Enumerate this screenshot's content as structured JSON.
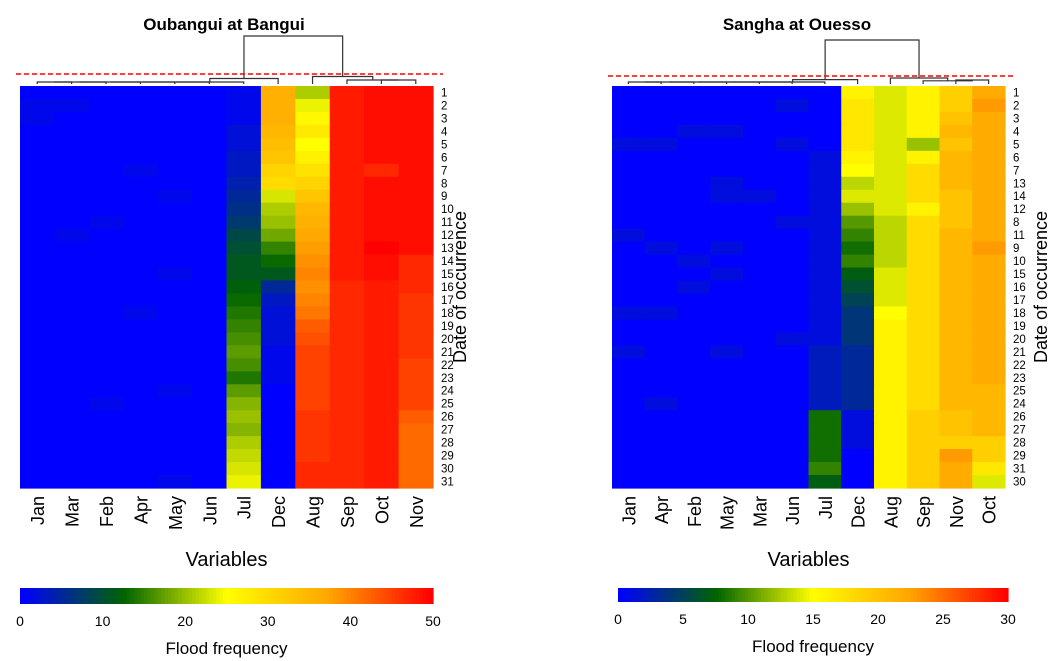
{
  "chart_data": [
    {
      "type": "heatmap",
      "title": "Oubangui at Bangui",
      "xlabel": "Variables",
      "ylabel": "Date of occurrence",
      "colorbar_label": "Flood frequency",
      "colorbar_ticks": [
        "0",
        "10",
        "20",
        "30",
        "40",
        "50"
      ],
      "value_range": [
        0,
        50
      ],
      "colorscale": [
        "#0000ff",
        "#006400",
        "#ffff00",
        "#ffa500",
        "#ff0000"
      ],
      "dendrogram_cut": "red-dashed",
      "columns": [
        "Jan",
        "Mar",
        "Feb",
        "Apr",
        "May",
        "Jun",
        "Jul",
        "Dec",
        "Aug",
        "Sep",
        "Oct",
        "Nov"
      ],
      "rows": [
        "1",
        "2",
        "3",
        "4",
        "5",
        "6",
        "7",
        "8",
        "9",
        "10",
        "11",
        "12",
        "13",
        "14",
        "15",
        "16",
        "17",
        "18",
        "19",
        "20",
        "21",
        "22",
        "23",
        "24",
        "25",
        "26",
        "27",
        "28",
        "29",
        "30",
        "31"
      ],
      "values": [
        [
          0,
          0,
          0,
          0,
          0,
          0,
          1,
          36,
          21,
          48,
          49,
          49
        ],
        [
          1,
          1,
          0,
          0,
          0,
          0,
          1,
          36,
          24,
          48,
          49,
          49
        ],
        [
          1,
          0,
          0,
          0,
          0,
          0,
          1,
          36,
          26,
          48,
          49,
          49
        ],
        [
          0,
          0,
          0,
          0,
          0,
          0,
          2,
          35,
          28,
          48,
          49,
          49
        ],
        [
          0,
          0,
          0,
          0,
          0,
          0,
          2,
          34,
          25,
          48,
          49,
          49
        ],
        [
          0,
          0,
          0,
          0,
          0,
          0,
          3,
          33,
          27,
          48,
          49,
          49
        ],
        [
          0,
          0,
          0,
          1,
          0,
          0,
          3,
          31,
          29,
          48,
          47,
          49
        ],
        [
          0,
          0,
          0,
          0,
          0,
          0,
          4,
          30,
          31,
          48,
          49,
          49
        ],
        [
          0,
          0,
          0,
          0,
          1,
          0,
          5,
          23,
          33,
          48,
          49,
          49
        ],
        [
          0,
          0,
          0,
          0,
          0,
          0,
          6,
          21,
          35,
          48,
          49,
          49
        ],
        [
          0,
          0,
          1,
          0,
          0,
          0,
          7,
          20,
          36,
          48,
          49,
          49
        ],
        [
          0,
          1,
          0,
          0,
          0,
          0,
          9,
          18,
          37,
          48,
          49,
          49
        ],
        [
          0,
          0,
          0,
          0,
          0,
          0,
          10,
          15,
          38,
          48,
          50,
          49
        ],
        [
          0,
          0,
          0,
          0,
          0,
          0,
          11,
          13,
          39,
          48,
          49,
          47
        ],
        [
          0,
          0,
          0,
          0,
          1,
          0,
          11,
          11,
          40,
          48,
          49,
          47
        ],
        [
          0,
          0,
          0,
          0,
          0,
          0,
          12,
          5,
          39,
          47,
          48,
          47
        ],
        [
          0,
          0,
          0,
          0,
          0,
          0,
          13,
          3,
          40,
          47,
          48,
          46
        ],
        [
          0,
          0,
          0,
          1,
          0,
          0,
          14,
          2,
          41,
          47,
          48,
          46
        ],
        [
          0,
          0,
          0,
          0,
          0,
          0,
          15,
          2,
          43,
          47,
          48,
          46
        ],
        [
          0,
          0,
          0,
          0,
          0,
          0,
          16,
          2,
          44,
          47,
          48,
          46
        ],
        [
          0,
          0,
          0,
          0,
          0,
          0,
          17,
          1,
          45,
          47,
          48,
          46
        ],
        [
          0,
          0,
          0,
          0,
          0,
          0,
          16,
          1,
          45,
          47,
          48,
          45
        ],
        [
          0,
          0,
          0,
          0,
          0,
          0,
          14,
          1,
          45,
          47,
          48,
          45
        ],
        [
          0,
          0,
          0,
          0,
          1,
          0,
          17,
          0,
          45,
          47,
          48,
          45
        ],
        [
          0,
          0,
          1,
          0,
          0,
          0,
          19,
          0,
          45,
          47,
          48,
          45
        ],
        [
          0,
          0,
          0,
          0,
          0,
          0,
          20,
          0,
          46,
          47,
          48,
          43
        ],
        [
          0,
          0,
          0,
          0,
          0,
          0,
          19,
          0,
          46,
          47,
          48,
          42
        ],
        [
          0,
          0,
          0,
          0,
          0,
          0,
          21,
          0,
          46,
          47,
          48,
          42
        ],
        [
          0,
          0,
          0,
          0,
          0,
          0,
          22,
          0,
          46,
          47,
          48,
          42
        ],
        [
          0,
          0,
          0,
          0,
          0,
          0,
          23,
          0,
          47,
          47,
          48,
          42
        ],
        [
          0,
          0,
          0,
          0,
          1,
          0,
          24,
          0,
          47,
          47,
          48,
          42
        ]
      ]
    },
    {
      "type": "heatmap",
      "title": "Sangha at Ouesso",
      "xlabel": "Variables",
      "ylabel": "Date of occurrence",
      "colorbar_label": "Flood frequency",
      "colorbar_ticks": [
        "0",
        "5",
        "10",
        "15",
        "20",
        "25",
        "30"
      ],
      "value_range": [
        0,
        30
      ],
      "colorscale": [
        "#0000ff",
        "#006400",
        "#ffff00",
        "#ffa500",
        "#ff0000"
      ],
      "dendrogram_cut": "red-dashed",
      "columns": [
        "Jan",
        "Apr",
        "Feb",
        "May",
        "Mar",
        "Jun",
        "Jul",
        "Dec",
        "Aug",
        "Sep",
        "Nov",
        "Oct"
      ],
      "rows": [
        "1",
        "2",
        "3",
        "4",
        "5",
        "6",
        "7",
        "13",
        "14",
        "12",
        "8",
        "11",
        "9",
        "10",
        "15",
        "16",
        "17",
        "18",
        "19",
        "20",
        "21",
        "22",
        "23",
        "25",
        "24",
        "26",
        "27",
        "28",
        "29",
        "31",
        "30"
      ],
      "values": [
        [
          0,
          0,
          0,
          0,
          0,
          0,
          0,
          16,
          14,
          16,
          19,
          22
        ],
        [
          0,
          0,
          0,
          0,
          0,
          1,
          0,
          17,
          14,
          16,
          19,
          23
        ],
        [
          0,
          0,
          0,
          0,
          0,
          0,
          0,
          17,
          14,
          16,
          20,
          22
        ],
        [
          0,
          0,
          1,
          1,
          0,
          0,
          0,
          17,
          14,
          16,
          21,
          22
        ],
        [
          1,
          1,
          0,
          0,
          0,
          1,
          0,
          17,
          14,
          12,
          20,
          22
        ],
        [
          0,
          0,
          0,
          0,
          0,
          0,
          1,
          16,
          14,
          16,
          21,
          22
        ],
        [
          0,
          0,
          0,
          0,
          0,
          0,
          1,
          15,
          14,
          18,
          21,
          22
        ],
        [
          0,
          0,
          0,
          1,
          0,
          0,
          1,
          13,
          14,
          18,
          21,
          22
        ],
        [
          0,
          0,
          0,
          1,
          1,
          0,
          1,
          14,
          14,
          18,
          20,
          22
        ],
        [
          0,
          0,
          0,
          0,
          0,
          0,
          1,
          12,
          14,
          16,
          20,
          22
        ],
        [
          0,
          0,
          0,
          0,
          0,
          1,
          1,
          10,
          13,
          18,
          20,
          22
        ],
        [
          1,
          0,
          0,
          0,
          0,
          0,
          1,
          9,
          13,
          18,
          21,
          22
        ],
        [
          0,
          1,
          0,
          1,
          0,
          0,
          1,
          8,
          13,
          18,
          21,
          23
        ],
        [
          0,
          0,
          1,
          0,
          0,
          0,
          1,
          9,
          13,
          18,
          21,
          22
        ],
        [
          0,
          0,
          0,
          1,
          0,
          0,
          1,
          7,
          14,
          18,
          21,
          22
        ],
        [
          0,
          0,
          1,
          0,
          0,
          0,
          1,
          6,
          14,
          18,
          21,
          22
        ],
        [
          0,
          0,
          0,
          0,
          0,
          0,
          1,
          5,
          14,
          18,
          21,
          22
        ],
        [
          1,
          1,
          0,
          0,
          0,
          0,
          1,
          4,
          15,
          18,
          21,
          22
        ],
        [
          0,
          0,
          0,
          0,
          0,
          0,
          1,
          4,
          16,
          18,
          21,
          22
        ],
        [
          0,
          0,
          0,
          0,
          0,
          1,
          1,
          4,
          16,
          18,
          21,
          22
        ],
        [
          1,
          0,
          0,
          1,
          0,
          0,
          2,
          3,
          16,
          18,
          21,
          22
        ],
        [
          0,
          0,
          0,
          0,
          0,
          0,
          2,
          3,
          16,
          18,
          21,
          22
        ],
        [
          0,
          0,
          0,
          0,
          0,
          0,
          2,
          3,
          16,
          18,
          21,
          22
        ],
        [
          0,
          0,
          0,
          0,
          0,
          0,
          2,
          3,
          16,
          18,
          21,
          21
        ],
        [
          0,
          1,
          0,
          0,
          0,
          0,
          2,
          3,
          16,
          18,
          21,
          21
        ],
        [
          0,
          0,
          0,
          0,
          0,
          0,
          8,
          1,
          16,
          19,
          20,
          21
        ],
        [
          0,
          0,
          0,
          0,
          0,
          0,
          8,
          1,
          16,
          19,
          20,
          21
        ],
        [
          0,
          0,
          0,
          0,
          0,
          0,
          8,
          1,
          16,
          19,
          19,
          19
        ],
        [
          0,
          0,
          0,
          0,
          0,
          0,
          8,
          0,
          16,
          19,
          23,
          19
        ],
        [
          0,
          0,
          0,
          0,
          0,
          0,
          9,
          0,
          16,
          19,
          22,
          17
        ],
        [
          0,
          0,
          0,
          0,
          0,
          0,
          7,
          0,
          16,
          19,
          22,
          14
        ]
      ]
    }
  ]
}
